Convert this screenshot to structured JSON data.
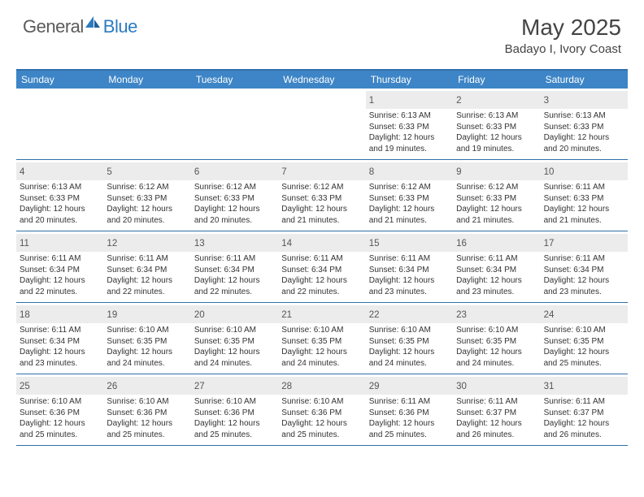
{
  "logo": {
    "general": "General",
    "blue": "Blue"
  },
  "title": "May 2025",
  "location": "Badayo I, Ivory Coast",
  "colors": {
    "header_bg": "#3d85c6",
    "border": "#2f6fa8",
    "daynum_bg": "#ececec",
    "logo_gray": "#5a5a5a",
    "logo_blue": "#2b7bbf"
  },
  "day_names": [
    "Sunday",
    "Monday",
    "Tuesday",
    "Wednesday",
    "Thursday",
    "Friday",
    "Saturday"
  ],
  "weeks": [
    [
      {
        "n": "",
        "sr": "",
        "ss": "",
        "dl": ""
      },
      {
        "n": "",
        "sr": "",
        "ss": "",
        "dl": ""
      },
      {
        "n": "",
        "sr": "",
        "ss": "",
        "dl": ""
      },
      {
        "n": "",
        "sr": "",
        "ss": "",
        "dl": ""
      },
      {
        "n": "1",
        "sr": "Sunrise: 6:13 AM",
        "ss": "Sunset: 6:33 PM",
        "dl": "Daylight: 12 hours and 19 minutes."
      },
      {
        "n": "2",
        "sr": "Sunrise: 6:13 AM",
        "ss": "Sunset: 6:33 PM",
        "dl": "Daylight: 12 hours and 19 minutes."
      },
      {
        "n": "3",
        "sr": "Sunrise: 6:13 AM",
        "ss": "Sunset: 6:33 PM",
        "dl": "Daylight: 12 hours and 20 minutes."
      }
    ],
    [
      {
        "n": "4",
        "sr": "Sunrise: 6:13 AM",
        "ss": "Sunset: 6:33 PM",
        "dl": "Daylight: 12 hours and 20 minutes."
      },
      {
        "n": "5",
        "sr": "Sunrise: 6:12 AM",
        "ss": "Sunset: 6:33 PM",
        "dl": "Daylight: 12 hours and 20 minutes."
      },
      {
        "n": "6",
        "sr": "Sunrise: 6:12 AM",
        "ss": "Sunset: 6:33 PM",
        "dl": "Daylight: 12 hours and 20 minutes."
      },
      {
        "n": "7",
        "sr": "Sunrise: 6:12 AM",
        "ss": "Sunset: 6:33 PM",
        "dl": "Daylight: 12 hours and 21 minutes."
      },
      {
        "n": "8",
        "sr": "Sunrise: 6:12 AM",
        "ss": "Sunset: 6:33 PM",
        "dl": "Daylight: 12 hours and 21 minutes."
      },
      {
        "n": "9",
        "sr": "Sunrise: 6:12 AM",
        "ss": "Sunset: 6:33 PM",
        "dl": "Daylight: 12 hours and 21 minutes."
      },
      {
        "n": "10",
        "sr": "Sunrise: 6:11 AM",
        "ss": "Sunset: 6:33 PM",
        "dl": "Daylight: 12 hours and 21 minutes."
      }
    ],
    [
      {
        "n": "11",
        "sr": "Sunrise: 6:11 AM",
        "ss": "Sunset: 6:34 PM",
        "dl": "Daylight: 12 hours and 22 minutes."
      },
      {
        "n": "12",
        "sr": "Sunrise: 6:11 AM",
        "ss": "Sunset: 6:34 PM",
        "dl": "Daylight: 12 hours and 22 minutes."
      },
      {
        "n": "13",
        "sr": "Sunrise: 6:11 AM",
        "ss": "Sunset: 6:34 PM",
        "dl": "Daylight: 12 hours and 22 minutes."
      },
      {
        "n": "14",
        "sr": "Sunrise: 6:11 AM",
        "ss": "Sunset: 6:34 PM",
        "dl": "Daylight: 12 hours and 22 minutes."
      },
      {
        "n": "15",
        "sr": "Sunrise: 6:11 AM",
        "ss": "Sunset: 6:34 PM",
        "dl": "Daylight: 12 hours and 23 minutes."
      },
      {
        "n": "16",
        "sr": "Sunrise: 6:11 AM",
        "ss": "Sunset: 6:34 PM",
        "dl": "Daylight: 12 hours and 23 minutes."
      },
      {
        "n": "17",
        "sr": "Sunrise: 6:11 AM",
        "ss": "Sunset: 6:34 PM",
        "dl": "Daylight: 12 hours and 23 minutes."
      }
    ],
    [
      {
        "n": "18",
        "sr": "Sunrise: 6:11 AM",
        "ss": "Sunset: 6:34 PM",
        "dl": "Daylight: 12 hours and 23 minutes."
      },
      {
        "n": "19",
        "sr": "Sunrise: 6:10 AM",
        "ss": "Sunset: 6:35 PM",
        "dl": "Daylight: 12 hours and 24 minutes."
      },
      {
        "n": "20",
        "sr": "Sunrise: 6:10 AM",
        "ss": "Sunset: 6:35 PM",
        "dl": "Daylight: 12 hours and 24 minutes."
      },
      {
        "n": "21",
        "sr": "Sunrise: 6:10 AM",
        "ss": "Sunset: 6:35 PM",
        "dl": "Daylight: 12 hours and 24 minutes."
      },
      {
        "n": "22",
        "sr": "Sunrise: 6:10 AM",
        "ss": "Sunset: 6:35 PM",
        "dl": "Daylight: 12 hours and 24 minutes."
      },
      {
        "n": "23",
        "sr": "Sunrise: 6:10 AM",
        "ss": "Sunset: 6:35 PM",
        "dl": "Daylight: 12 hours and 24 minutes."
      },
      {
        "n": "24",
        "sr": "Sunrise: 6:10 AM",
        "ss": "Sunset: 6:35 PM",
        "dl": "Daylight: 12 hours and 25 minutes."
      }
    ],
    [
      {
        "n": "25",
        "sr": "Sunrise: 6:10 AM",
        "ss": "Sunset: 6:36 PM",
        "dl": "Daylight: 12 hours and 25 minutes."
      },
      {
        "n": "26",
        "sr": "Sunrise: 6:10 AM",
        "ss": "Sunset: 6:36 PM",
        "dl": "Daylight: 12 hours and 25 minutes."
      },
      {
        "n": "27",
        "sr": "Sunrise: 6:10 AM",
        "ss": "Sunset: 6:36 PM",
        "dl": "Daylight: 12 hours and 25 minutes."
      },
      {
        "n": "28",
        "sr": "Sunrise: 6:10 AM",
        "ss": "Sunset: 6:36 PM",
        "dl": "Daylight: 12 hours and 25 minutes."
      },
      {
        "n": "29",
        "sr": "Sunrise: 6:11 AM",
        "ss": "Sunset: 6:36 PM",
        "dl": "Daylight: 12 hours and 25 minutes."
      },
      {
        "n": "30",
        "sr": "Sunrise: 6:11 AM",
        "ss": "Sunset: 6:37 PM",
        "dl": "Daylight: 12 hours and 26 minutes."
      },
      {
        "n": "31",
        "sr": "Sunrise: 6:11 AM",
        "ss": "Sunset: 6:37 PM",
        "dl": "Daylight: 12 hours and 26 minutes."
      }
    ]
  ]
}
